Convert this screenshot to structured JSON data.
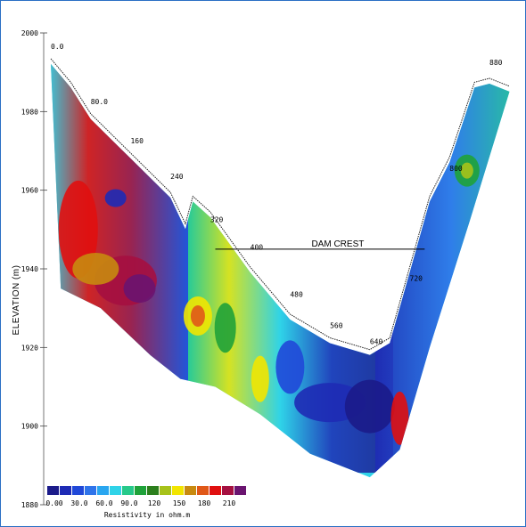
{
  "chart_data": {
    "type": "heatmap",
    "title": "",
    "ylabel": "ELEVATION (m)",
    "ylim": [
      1880,
      2000
    ],
    "y_ticks": [
      "2000",
      "1980",
      "1960",
      "1940",
      "1920",
      "1900",
      "1880"
    ],
    "y_tick_values": [
      2000,
      1980,
      1960,
      1940,
      1920,
      1900,
      1880
    ],
    "xlim": [
      0,
      880
    ],
    "station_labels": [
      {
        "text": "0.0",
        "x": 0,
        "y": 1995
      },
      {
        "text": "80.0",
        "x": 80,
        "y": 1981
      },
      {
        "text": "160",
        "x": 160,
        "y": 1971
      },
      {
        "text": "240",
        "x": 240,
        "y": 1962
      },
      {
        "text": "320",
        "x": 320,
        "y": 1951
      },
      {
        "text": "400",
        "x": 400,
        "y": 1944
      },
      {
        "text": "480",
        "x": 480,
        "y": 1932
      },
      {
        "text": "560",
        "x": 560,
        "y": 1924
      },
      {
        "text": "640",
        "x": 640,
        "y": 1920
      },
      {
        "text": "720",
        "x": 720,
        "y": 1936
      },
      {
        "text": "800",
        "x": 800,
        "y": 1964
      },
      {
        "text": "880",
        "x": 880,
        "y": 1991
      }
    ],
    "surface_profile": [
      {
        "x": 0,
        "y": 1993
      },
      {
        "x": 40,
        "y": 1987
      },
      {
        "x": 80,
        "y": 1979
      },
      {
        "x": 160,
        "y": 1969
      },
      {
        "x": 240,
        "y": 1959
      },
      {
        "x": 270,
        "y": 1951
      },
      {
        "x": 285,
        "y": 1958
      },
      {
        "x": 320,
        "y": 1954
      },
      {
        "x": 400,
        "y": 1940
      },
      {
        "x": 480,
        "y": 1928
      },
      {
        "x": 560,
        "y": 1922
      },
      {
        "x": 640,
        "y": 1919
      },
      {
        "x": 680,
        "y": 1922
      },
      {
        "x": 720,
        "y": 1940
      },
      {
        "x": 760,
        "y": 1958
      },
      {
        "x": 800,
        "y": 1968
      },
      {
        "x": 850,
        "y": 1987
      },
      {
        "x": 880,
        "y": 1988
      },
      {
        "x": 920,
        "y": 1986
      }
    ],
    "section_base": [
      {
        "x": 20,
        "y": 1935
      },
      {
        "x": 100,
        "y": 1930
      },
      {
        "x": 200,
        "y": 1918
      },
      {
        "x": 260,
        "y": 1912
      },
      {
        "x": 330,
        "y": 1910
      },
      {
        "x": 420,
        "y": 1903
      },
      {
        "x": 520,
        "y": 1893
      },
      {
        "x": 600,
        "y": 1889
      },
      {
        "x": 640,
        "y": 1887
      },
      {
        "x": 700,
        "y": 1894
      },
      {
        "x": 760,
        "y": 1920
      },
      {
        "x": 840,
        "y": 1952
      },
      {
        "x": 920,
        "y": 1985
      }
    ],
    "annotation": {
      "text": "DAM CREST",
      "x_start": 330,
      "x_end": 750,
      "y": 1945
    },
    "legend": {
      "title": "Resistivity in ohm.m",
      "colors": [
        "#1b1b8a",
        "#1e2bb5",
        "#2048d8",
        "#2f74ea",
        "#29a6f0",
        "#2fd3e8",
        "#26c98a",
        "#1fa23a",
        "#2c7f1d",
        "#a7c21a",
        "#f2e500",
        "#c88a10",
        "#e05818",
        "#e01010",
        "#a51040",
        "#6a1470"
      ],
      "labels": [
        "0.00",
        "30.0",
        "60.0",
        "90.0",
        "120",
        "150",
        "180",
        "210"
      ]
    }
  }
}
